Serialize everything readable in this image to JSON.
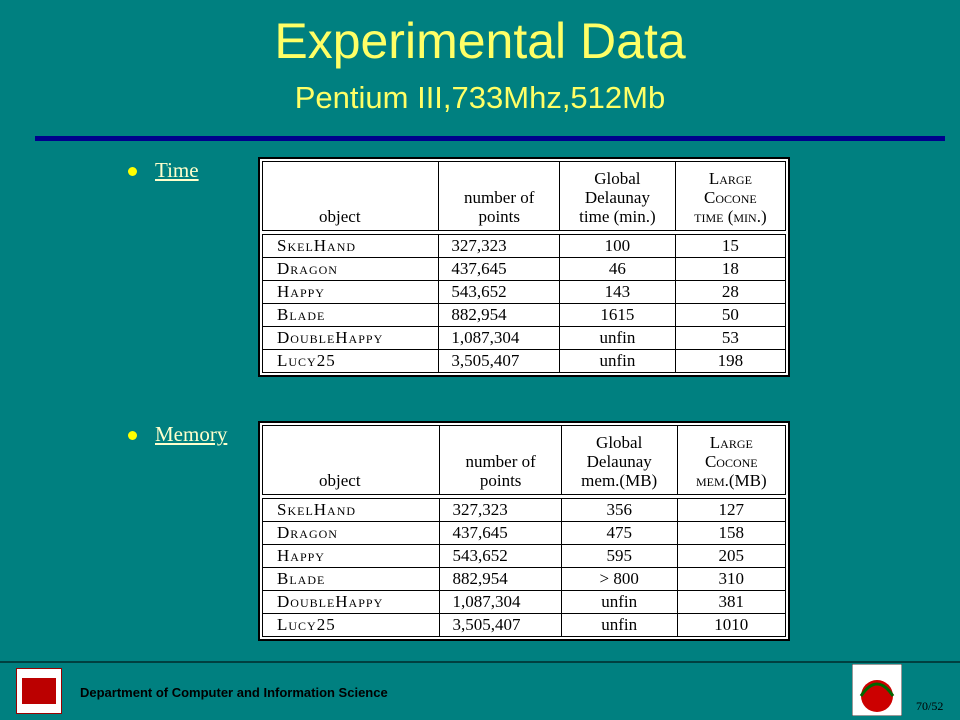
{
  "header": {
    "title": "Experimental Data",
    "subtitle": "Pentium III,733Mhz,512Mb"
  },
  "sections": [
    {
      "bullet": "Time",
      "table": {
        "columns": [
          "object",
          "number of\npoints",
          "Global\nDelaunay\ntime (min.)",
          "Large\nCocone\ntime (min.)"
        ],
        "rows": [
          [
            "SkelHand",
            "327,323",
            "100",
            "15"
          ],
          [
            "Dragon",
            "437,645",
            "46",
            "18"
          ],
          [
            "Happy",
            "543,652",
            "143",
            "28"
          ],
          [
            "Blade",
            "882,954",
            "1615",
            "50"
          ],
          [
            "DoubleHappy",
            "1,087,304",
            "unfin",
            "53"
          ],
          [
            "Lucy25",
            "3,505,407",
            "unfin",
            "198"
          ]
        ]
      }
    },
    {
      "bullet": "Memory",
      "table": {
        "columns": [
          "object",
          "number of\npoints",
          "Global\nDelaunay\nmem.(MB)",
          "Large\nCocone\nmem.(MB)"
        ],
        "rows": [
          [
            "SkelHand",
            "327,323",
            "356",
            "127"
          ],
          [
            "Dragon",
            "437,645",
            "475",
            "158"
          ],
          [
            "Happy",
            "543,652",
            "595",
            "205"
          ],
          [
            "Blade",
            "882,954",
            "> 800",
            "310"
          ],
          [
            "DoubleHappy",
            "1,087,304",
            "unfin",
            "381"
          ],
          [
            "Lucy25",
            "3,505,407",
            "unfin",
            "1010"
          ]
        ]
      }
    }
  ],
  "footer": {
    "department": "Department of Computer and Information Science",
    "page": "70/52"
  }
}
